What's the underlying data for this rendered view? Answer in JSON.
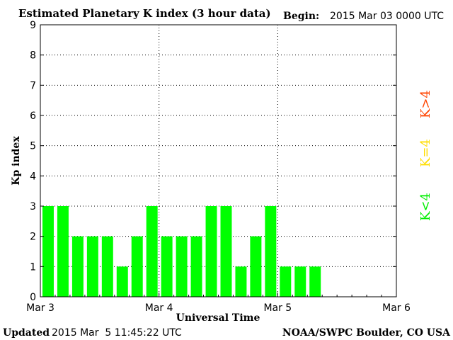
{
  "header": {
    "title": "Estimated Planetary K index (3 hour data)",
    "begin_label": "Begin:",
    "begin_value": "2015 Mar 03 0000 UTC"
  },
  "footer": {
    "updated_label": "Updated",
    "updated_value": "2015 Mar  5 11:45:22 UTC",
    "source": "NOAA/SWPC Boulder, CO USA"
  },
  "legend": [
    {
      "label": "K>4",
      "color": "#ff4400"
    },
    {
      "label": "K=4",
      "color": "#ffdd00"
    },
    {
      "label": "K<4",
      "color": "#00ee00"
    }
  ],
  "colors": {
    "bar": "#00ff00",
    "gridline": "#000000",
    "axis": "#000000"
  },
  "chart_data": {
    "type": "bar",
    "title": "Estimated Planetary K index (3 hour data)",
    "xlabel": "Universal Time",
    "ylabel": "Kp index",
    "ylim": [
      0,
      9
    ],
    "yticks": [
      "0",
      "1",
      "2",
      "3",
      "4",
      "5",
      "6",
      "7",
      "8",
      "9"
    ],
    "xticks": [
      "Mar 3",
      "Mar 4",
      "Mar 5",
      "Mar 6"
    ],
    "grid": true,
    "bins_per_day": 8,
    "days": 3,
    "series": [
      {
        "values": [
          3,
          3,
          2,
          2,
          2,
          1,
          2,
          3,
          2,
          2,
          2,
          3,
          3,
          1,
          2,
          3,
          1,
          1,
          1
        ]
      }
    ]
  }
}
